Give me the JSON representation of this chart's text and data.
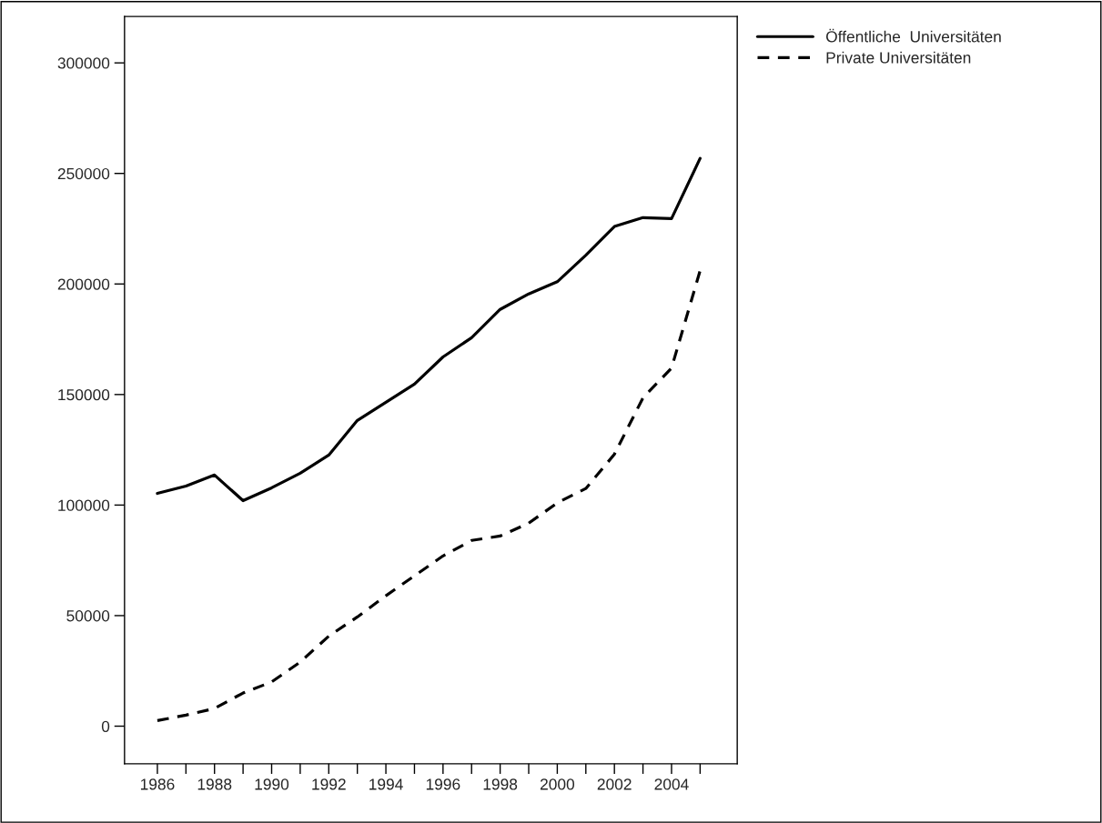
{
  "chart_data": {
    "type": "line",
    "x": [
      1986,
      1987,
      1988,
      1989,
      1990,
      1991,
      1992,
      1993,
      1994,
      1995,
      1996,
      1997,
      1998,
      1999,
      2000,
      2001,
      2002,
      2003,
      2004,
      2005
    ],
    "series": [
      {
        "name": "Öffentliche  Universitäten",
        "color": "#000000",
        "line_style": "solid",
        "values": [
          105300,
          108600,
          113600,
          102000,
          107800,
          114400,
          122600,
          138300,
          146500,
          154700,
          167000,
          175700,
          188500,
          195500,
          201000,
          213000,
          226000,
          230000,
          229600,
          256800
        ]
      },
      {
        "name": "Private Universitäten",
        "color": "#000000",
        "line_style": "dashed",
        "values": [
          2500,
          5000,
          8000,
          15000,
          20000,
          29000,
          40700,
          49400,
          59000,
          68000,
          77000,
          84000,
          86000,
          91800,
          101000,
          107500,
          123000,
          148500,
          162000,
          206000
        ]
      }
    ],
    "xlim": [
      1984.85,
      2006.3
    ],
    "ylim": [
      -17000,
      321000
    ],
    "xticks": [
      1986,
      {
        "value": 1987,
        "label": null
      },
      1988,
      {
        "value": 1989,
        "label": null
      },
      1990,
      {
        "value": 1991,
        "label": null
      },
      1992,
      {
        "value": 1993,
        "label": null
      },
      1994,
      {
        "value": 1995,
        "label": null
      },
      1996,
      {
        "value": 1997,
        "label": null
      },
      1998,
      {
        "value": 1999,
        "label": null
      },
      2000,
      {
        "value": 2001,
        "label": null
      },
      2002,
      {
        "value": 2003,
        "label": null
      },
      2004,
      {
        "value": 2005,
        "label": null
      }
    ],
    "yticks": [
      0,
      50000,
      100000,
      150000,
      200000,
      250000,
      300000
    ],
    "grid": false,
    "legend": "top right"
  }
}
